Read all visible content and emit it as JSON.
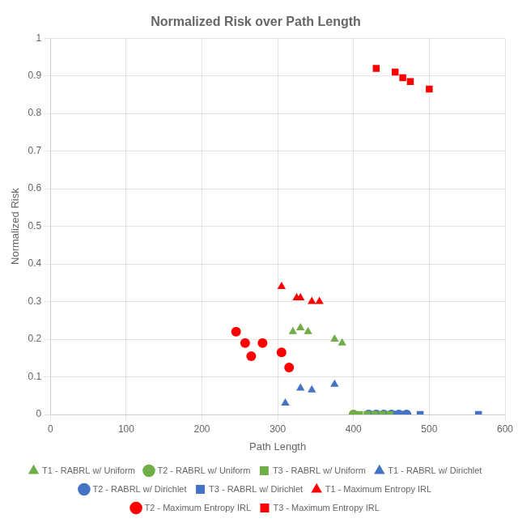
{
  "chart_data": {
    "type": "scatter",
    "title": "Normalized Risk over Path Length",
    "x_label": "Path Length",
    "y_label": "Normalized Risk",
    "xlim": [
      0,
      600
    ],
    "ylim": [
      0,
      1
    ],
    "xticks": [
      0,
      100,
      200,
      300,
      400,
      500,
      600
    ],
    "yticks": [
      0,
      0.1,
      0.2,
      0.3,
      0.4,
      0.5,
      0.6,
      0.7,
      0.8,
      0.9,
      1
    ],
    "grid": true,
    "legend": "bottom",
    "series": [
      {
        "name": "T1 - RABRL w/ Uniform",
        "color": "#70ad47",
        "marker": "triangle",
        "x": [
          320,
          330,
          340,
          375,
          385
        ],
        "values": [
          0.22,
          0.23,
          0.22,
          0.2,
          0.19
        ]
      },
      {
        "name": "T2 - RABRL w/ Uniform",
        "color": "#70ad47",
        "marker": "circle",
        "x": [
          400
        ],
        "values": [
          0.0
        ]
      },
      {
        "name": "T3 - RABRL w/ Uniform",
        "color": "#70ad47",
        "marker": "square",
        "x": [
          408,
          418,
          428,
          438,
          448
        ],
        "values": [
          0.0,
          0.0,
          0.0,
          0.0,
          0.0
        ]
      },
      {
        "name": "T1 - RABRL w/ Dirichlet",
        "color": "#4472c4",
        "marker": "triangle",
        "x": [
          310,
          330,
          345,
          375
        ],
        "values": [
          0.03,
          0.07,
          0.065,
          0.08
        ]
      },
      {
        "name": "T2 - RABRL w/ Dirichlet",
        "color": "#4472c4",
        "marker": "circle",
        "x": [
          420,
          430,
          440,
          450,
          460,
          470
        ],
        "values": [
          0.0,
          0.0,
          0.0,
          0.0,
          0.0,
          0.0
        ]
      },
      {
        "name": "T3 - RABRL w/ Dirichlet",
        "color": "#4472c4",
        "marker": "square",
        "x": [
          458,
          468,
          488,
          565
        ],
        "values": [
          0.0,
          0.0,
          0.0,
          0.0
        ]
      },
      {
        "name": "T1 - Maximum Entropy IRL",
        "color": "#ff0000",
        "marker": "triangle",
        "x": [
          305,
          325,
          330,
          345,
          355
        ],
        "values": [
          0.34,
          0.31,
          0.31,
          0.3,
          0.3
        ]
      },
      {
        "name": "T2 - Maximum Entropy IRL",
        "color": "#ff0000",
        "marker": "circle",
        "x": [
          245,
          257,
          265,
          280,
          305,
          315
        ],
        "values": [
          0.22,
          0.19,
          0.155,
          0.19,
          0.165,
          0.125
        ]
      },
      {
        "name": "T3 - Maximum Entropy IRL",
        "color": "#ff0000",
        "marker": "square",
        "x": [
          430,
          455,
          465,
          475,
          500
        ],
        "values": [
          0.92,
          0.91,
          0.895,
          0.885,
          0.865
        ]
      }
    ]
  }
}
